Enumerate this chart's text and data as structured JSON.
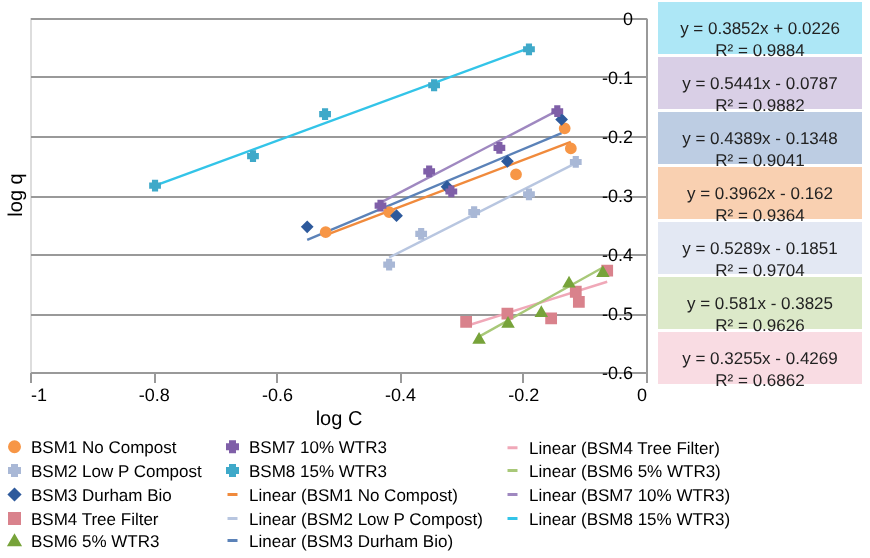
{
  "chart_data": {
    "type": "scatter",
    "xlabel": "log C",
    "ylabel": "log q",
    "xlim": [
      -1,
      0
    ],
    "xticks": [
      -1,
      -0.8,
      -0.6,
      -0.4,
      -0.2,
      0
    ],
    "ylim": [
      -0.6,
      0
    ],
    "yticks": [
      -0.6,
      -0.5,
      -0.4,
      -0.3,
      -0.2,
      -0.1,
      0
    ],
    "grid": "y",
    "legend": "bottom",
    "series": [
      {
        "name": "BSM1 No Compost",
        "color": "#f79646",
        "marker": "circle",
        "x": [
          -0.52,
          -0.417,
          -0.325,
          -0.211,
          -0.132,
          -0.122
        ],
        "values": [
          -0.363,
          -0.329,
          null,
          -0.265,
          -0.187,
          -0.221
        ]
      },
      {
        "name": "BSM2 Low P Compost",
        "color": "#a9b8d6",
        "marker": "cross",
        "x": [
          -0.417,
          -0.365,
          -0.279,
          -0.19,
          -0.114
        ],
        "values": [
          -0.418,
          -0.366,
          -0.329,
          -0.299,
          -0.244
        ]
      },
      {
        "name": "BSM3 Durham Bio",
        "color": "#2e5a9c",
        "marker": "diamond",
        "x": [
          -0.55,
          -0.405,
          -0.323,
          -0.225,
          -0.137
        ],
        "values": [
          -0.354,
          -0.335,
          -0.286,
          -0.243,
          -0.172
        ]
      },
      {
        "name": "BSM4 Tree Filter",
        "color": "#d9828c",
        "marker": "square",
        "x": [
          -0.292,
          -0.225,
          -0.154,
          -0.114,
          -0.109,
          -0.063
        ],
        "values": [
          -0.515,
          -0.501,
          -0.509,
          -0.464,
          -0.481,
          -0.428
        ]
      },
      {
        "name": "BSM6 5% WTR3",
        "color": "#77a33a",
        "marker": "triangle",
        "x": [
          -0.271,
          -0.224,
          -0.17,
          -0.125,
          -0.07
        ],
        "values": [
          -0.543,
          -0.516,
          -0.498,
          -0.448,
          -0.43
        ]
      },
      {
        "name": "BSM7 10% WTR3",
        "color": "#7f5fa8",
        "marker": "cross",
        "x": [
          -0.431,
          -0.352,
          -0.316,
          -0.238,
          -0.144
        ],
        "values": [
          -0.318,
          -0.26,
          -0.294,
          -0.22,
          -0.158
        ]
      },
      {
        "name": "BSM8 15% WTR3",
        "color": "#3fa9c9",
        "marker": "cross",
        "x": [
          -0.797,
          -0.638,
          -0.521,
          -0.344,
          -0.19
        ],
        "values": [
          -0.284,
          -0.234,
          -0.163,
          -0.114,
          -0.053
        ]
      },
      {
        "name": "Linear (BSM1 No Compost)",
        "type": "line",
        "color": "#f08a3c",
        "x": [
          -0.52,
          -0.122
        ],
        "values": [
          -0.368,
          -0.21
        ]
      },
      {
        "name": "Linear (BSM2 Low P Compost)",
        "type": "line",
        "color": "#b8c6e0",
        "x": [
          -0.417,
          -0.114
        ],
        "values": [
          -0.406,
          -0.246
        ]
      },
      {
        "name": "Linear (BSM3 Durham Bio)",
        "type": "line",
        "color": "#5b82b8",
        "x": [
          -0.55,
          -0.137
        ],
        "values": [
          -0.376,
          -0.195
        ]
      },
      {
        "name": "Linear (BSM4 Tree Filter)",
        "type": "line",
        "color": "#f0a8b8",
        "x": [
          -0.292,
          -0.063
        ],
        "values": [
          -0.522,
          -0.447
        ]
      },
      {
        "name": "Linear (BSM6 5% WTR3)",
        "type": "line",
        "color": "#a8c878",
        "x": [
          -0.271,
          -0.07
        ],
        "values": [
          -0.54,
          -0.423
        ]
      },
      {
        "name": "Linear (BSM7 10% WTR3)",
        "type": "line",
        "color": "#9f88c0",
        "x": [
          -0.431,
          -0.144
        ],
        "values": [
          -0.313,
          -0.157
        ]
      },
      {
        "name": "Linear (BSM8 15% WTR3)",
        "type": "line",
        "color": "#33c4e8",
        "x": [
          -0.797,
          -0.19
        ],
        "values": [
          -0.284,
          -0.051
        ]
      }
    ],
    "annotations": [
      "y = 0.3852x + 0.0226\nR² = 0.9884",
      "y = 0.5441x - 0.0787\nR² = 0.9882",
      "y = 0.4389x - 0.1348\nR² = 0.9041",
      "y = 0.3962x - 0.162\nR² = 0.9364",
      "y = 0.5289x - 0.1851\nR² = 0.9704",
      "y = 0.581x - 0.3825\nR² = 0.9626",
      "y = 0.3255x - 0.4269\nR² = 0.6862"
    ]
  }
}
